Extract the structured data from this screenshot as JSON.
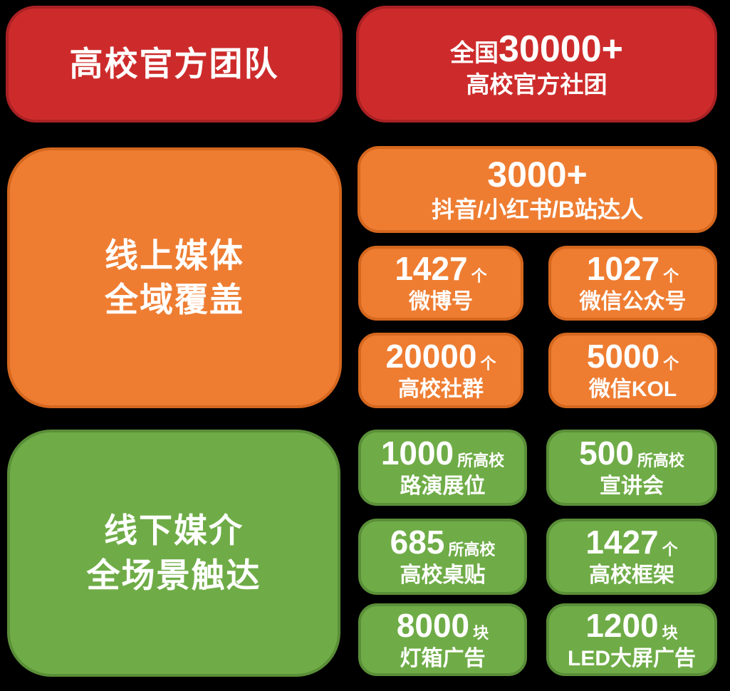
{
  "colors": {
    "red": "#cd2b2b",
    "red_border": "#aa2124",
    "orange": "#ee7d32",
    "orange_border": "#d5671e",
    "green": "#6fac47",
    "green_border": "#5a8f38",
    "text": "#ffffff"
  },
  "sections": {
    "team": {
      "title": "高校官方团队",
      "stat": {
        "prefix": "全国",
        "number": "30000+",
        "label": "高校官方社团"
      }
    },
    "online": {
      "title_line1": "线上媒体",
      "title_line2": "全域覆盖",
      "hero": {
        "number": "3000+",
        "label": "抖音/小红书/B站达人"
      },
      "stats": [
        {
          "number": "1427",
          "unit": "个",
          "label": "微博号"
        },
        {
          "number": "1027",
          "unit": "个",
          "label": "微信公众号"
        },
        {
          "number": "20000",
          "unit": "个",
          "label": "高校社群"
        },
        {
          "number": "5000",
          "unit": "个",
          "label": "微信KOL"
        }
      ]
    },
    "offline": {
      "title_line1": "线下媒介",
      "title_line2": "全场景触达",
      "stats": [
        {
          "number": "1000",
          "unit": "所高校",
          "label": "路演展位"
        },
        {
          "number": "500",
          "unit": "所高校",
          "label": "宣讲会"
        },
        {
          "number": "685",
          "unit": "所高校",
          "label": "高校桌贴"
        },
        {
          "number": "1427",
          "unit": "个",
          "label": "高校框架"
        },
        {
          "number": "8000",
          "unit": "块",
          "label": "灯箱广告"
        },
        {
          "number": "1200",
          "unit": "块",
          "label": "LED大屏广告"
        }
      ]
    }
  }
}
